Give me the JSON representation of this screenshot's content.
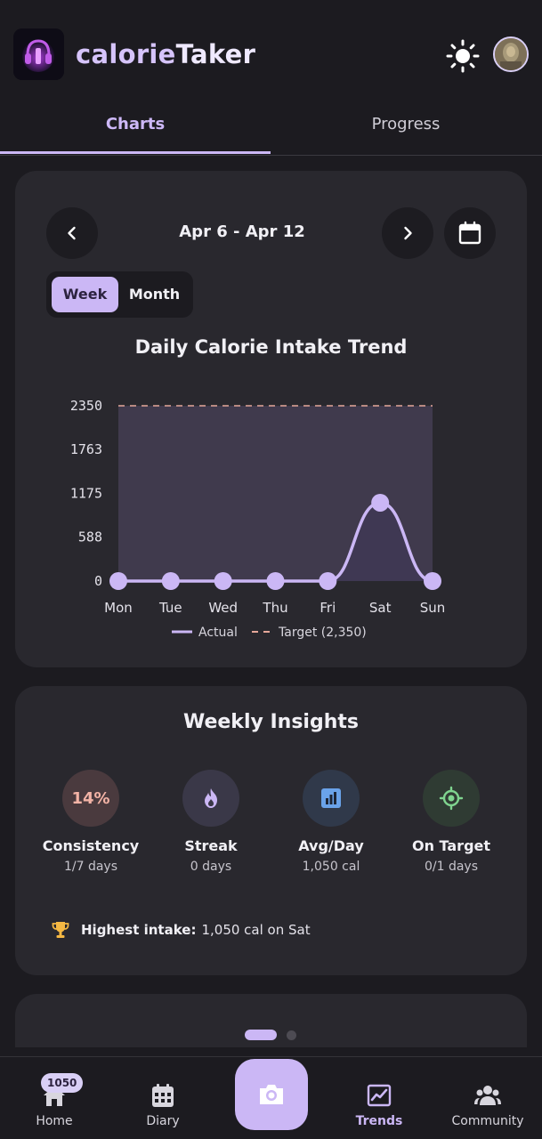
{
  "app": {
    "title_part1": "calorie",
    "title_part2": "Taker"
  },
  "tabs": [
    {
      "label": "Charts",
      "active": true
    },
    {
      "label": "Progress",
      "active": false
    }
  ],
  "chart_card": {
    "range": "Apr 6 - Apr 12",
    "toggle": {
      "week": "Week",
      "month": "Month",
      "selected": "Week"
    }
  },
  "chart_data": {
    "type": "area",
    "title": "Daily Calorie Intake Trend",
    "categories": [
      "Mon",
      "Tue",
      "Wed",
      "Thu",
      "Fri",
      "Sat",
      "Sun"
    ],
    "series": [
      {
        "name": "Actual",
        "values": [
          0,
          0,
          0,
          0,
          0,
          1050,
          0
        ],
        "color": "#cbb7f5"
      },
      {
        "name": "Target (2,350)",
        "values": [
          2350,
          2350,
          2350,
          2350,
          2350,
          2350,
          2350
        ],
        "color": "#e6a79a",
        "style": "dashed"
      }
    ],
    "y_ticks": [
      "2350",
      "1763",
      "1175",
      "588",
      "0"
    ],
    "ylim": [
      0,
      2350
    ],
    "grid": false,
    "legend_position": "bottom"
  },
  "insights": {
    "title": "Weekly Insights",
    "stats": [
      {
        "icon": "percent",
        "circle_text": "14%",
        "label": "Consistency",
        "value": "1/7 days",
        "bg": "#4a3a3e"
      },
      {
        "icon": "flame-icon",
        "label": "Streak",
        "value": "0 days",
        "bg": "#3a3848"
      },
      {
        "icon": "bar-chart-icon",
        "label": "Avg/Day",
        "value": "1,050 cal",
        "bg": "#30394a"
      },
      {
        "icon": "target-icon",
        "label": "On Target",
        "value": "0/1 days",
        "bg": "#2f3b33"
      }
    ],
    "highest_label": "Highest intake:",
    "highest_value": "1,050 cal on Sat"
  },
  "nav": {
    "items": [
      {
        "label": "Home",
        "icon": "home-icon",
        "badge": "1050"
      },
      {
        "label": "Diary",
        "icon": "calendar-grid-icon"
      },
      {
        "label": "Trends",
        "icon": "trending-up-icon",
        "active": true
      },
      {
        "label": "Community",
        "icon": "people-icon"
      }
    ]
  },
  "colors": {
    "accent": "#cbb7f5",
    "background": "#1c1b20",
    "card": "#29282e",
    "target": "#e6a79a"
  }
}
